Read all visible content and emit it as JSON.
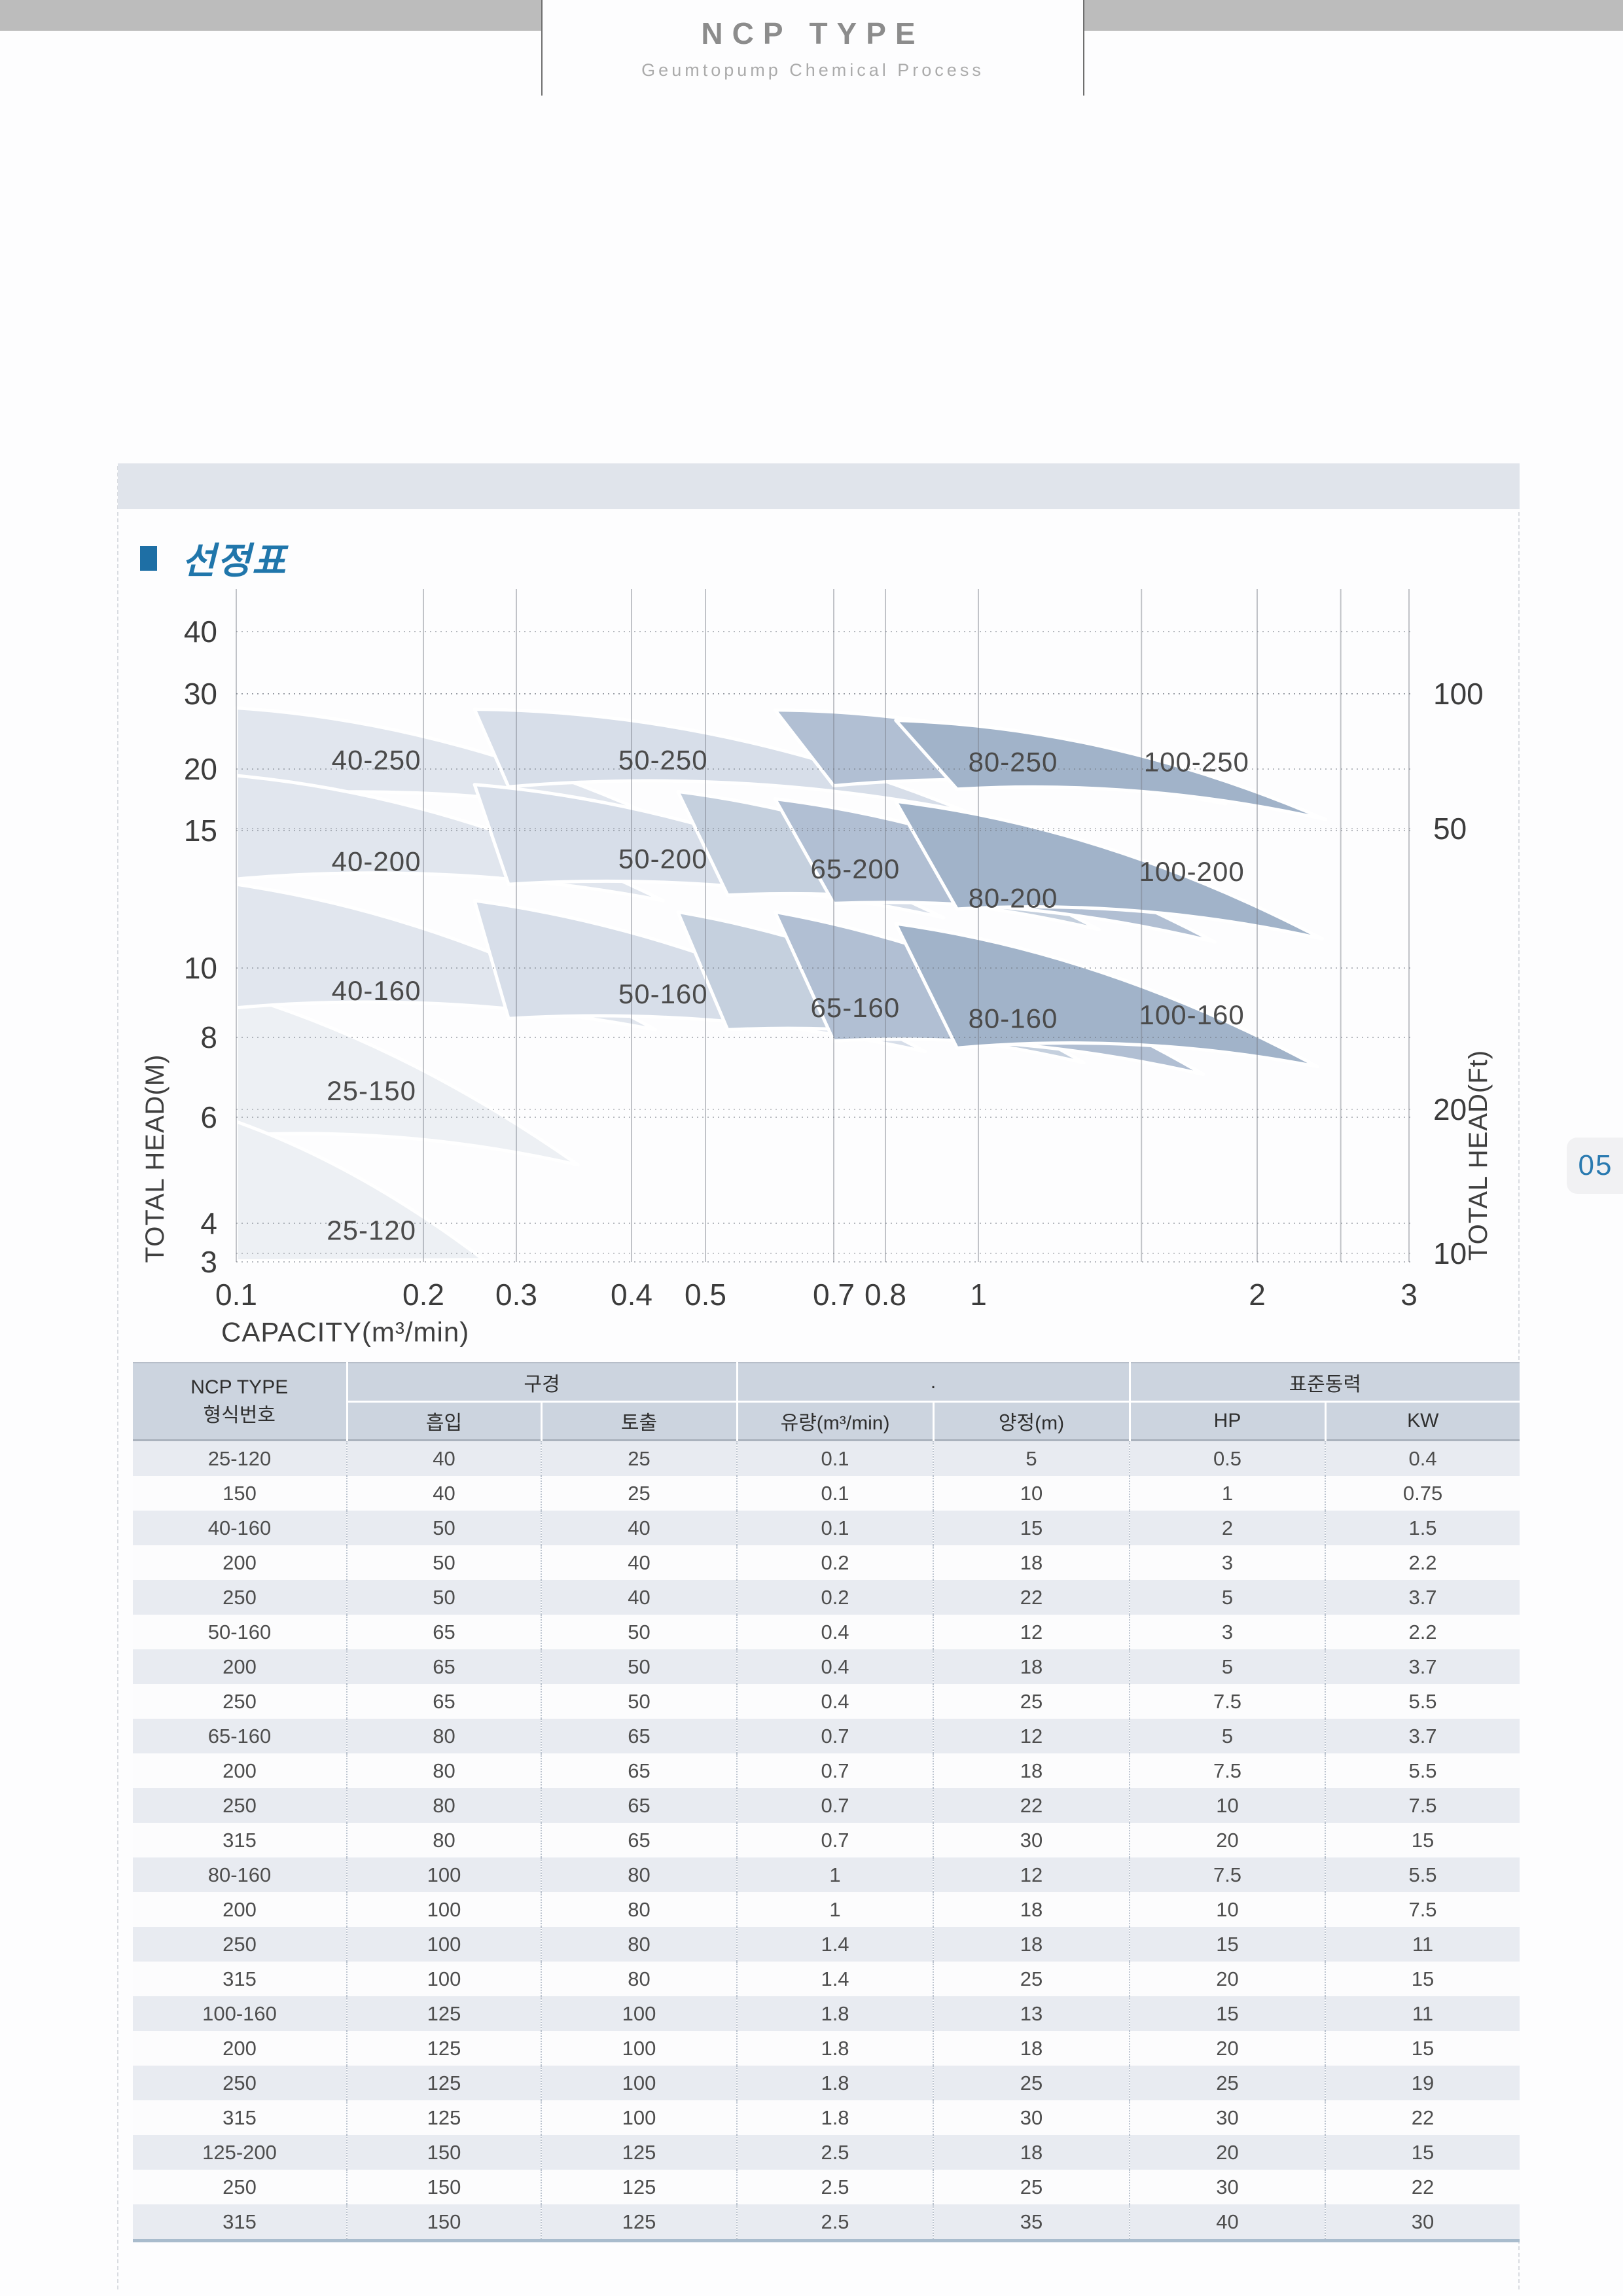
{
  "header": {
    "title": "NCP TYPE",
    "subtitle": "Geumtopump Chemical Process"
  },
  "section": {
    "title": "선정표"
  },
  "page_number": "05",
  "chart_data": {
    "type": "area",
    "title": "선정표 (pump selection chart)",
    "xlabel": "CAPACITY(m³/min)",
    "ylabel_left": "TOTAL HEAD(M)",
    "ylabel_right": "TOTAL HEAD(Ft)",
    "x_range": [
      0.1,
      3
    ],
    "y_range_m": [
      3,
      40
    ],
    "grid": "on",
    "x_ticks": [
      0.1,
      0.2,
      0.3,
      0.4,
      0.5,
      0.7,
      0.8,
      1,
      2,
      3
    ],
    "x_tick_labels": [
      "0.1",
      "0.2",
      "0.3",
      "0.4",
      "0.5",
      "0.7",
      "0.8",
      "1",
      "2",
      "3"
    ],
    "y_ticks_m": [
      40,
      30,
      20,
      15,
      10,
      8,
      6,
      4,
      3
    ],
    "y_tick_labels_m": [
      "40",
      "30",
      "20",
      "15",
      "10",
      "8",
      "6",
      "4",
      "3"
    ],
    "y_ticks_ft": [
      100,
      50,
      20,
      10
    ],
    "y_tick_labels_ft": [
      "100",
      "50",
      "20",
      "10"
    ],
    "regions": [
      {
        "label": "25-150",
        "color": "#edf0f4",
        "q1t": 0.1,
        "q1b": 0.1,
        "q2": 0.35,
        "hTL": 9.2,
        "hBL": 5.6,
        "hTip": 5.0,
        "label_q": 0.165,
        "label_h": 6.6,
        "flatBottom": false
      },
      {
        "label": "25-120",
        "color": "#edf0f4",
        "q1t": 0.1,
        "q1b": 0.1,
        "q2": 0.26,
        "hTL": 5.9,
        "hBL": 3.02,
        "hTip": 3.05,
        "label_q": 0.165,
        "label_h": 3.8,
        "flatBottom": true
      },
      {
        "label": "40-250",
        "color": "#e1e6ee",
        "q1t": 0.1,
        "q1b": 0.1,
        "q2": 0.45,
        "hTL": 27.8,
        "hBL": 17.6,
        "hTip": 15.5,
        "label_q": 0.168,
        "label_h": 21.0,
        "flatBottom": false
      },
      {
        "label": "40-200",
        "color": "#e1e6ee",
        "q1t": 0.1,
        "q1b": 0.1,
        "q2": 0.44,
        "hTL": 19.4,
        "hBL": 13.0,
        "hTip": 12.2,
        "label_q": 0.168,
        "label_h": 13.7,
        "flatBottom": false
      },
      {
        "label": "40-160",
        "color": "#e1e6ee",
        "q1t": 0.1,
        "q1b": 0.1,
        "q2": 0.43,
        "hTL": 12.8,
        "hBL": 8.8,
        "hTip": 8.2,
        "label_q": 0.168,
        "label_h": 9.3,
        "flatBottom": false
      },
      {
        "label": "50-250",
        "color": "#d7dee9",
        "q1t": 0.25,
        "q1b": 0.29,
        "q2": 0.97,
        "hTL": 27.6,
        "hBL": 18.4,
        "hTip": 16.4,
        "label_q": 0.44,
        "label_h": 21.0,
        "flatBottom": false
      },
      {
        "label": "50-200",
        "color": "#d7dee9",
        "q1t": 0.25,
        "q1b": 0.29,
        "q2": 0.92,
        "hTL": 18.6,
        "hBL": 12.8,
        "hTip": 11.6,
        "label_q": 0.44,
        "label_h": 13.8,
        "flatBottom": false
      },
      {
        "label": "50-160",
        "color": "#d7dee9",
        "q1t": 0.25,
        "q1b": 0.29,
        "q2": 0.88,
        "hTL": 12.2,
        "hBL": 8.5,
        "hTip": 7.6,
        "label_q": 0.44,
        "label_h": 9.2,
        "flatBottom": false
      },
      {
        "label": "65-200",
        "color": "#c5d0de",
        "q1t": 0.46,
        "q1b": 0.53,
        "q2": 1.35,
        "hTL": 18.0,
        "hBL": 12.4,
        "hTip": 11.2,
        "label_q": 0.74,
        "label_h": 13.4,
        "flatBottom": false
      },
      {
        "label": "65-160",
        "color": "#c5d0de",
        "q1t": 0.46,
        "q1b": 0.53,
        "q2": 1.3,
        "hTL": 11.8,
        "hBL": 8.2,
        "hTip": 7.3,
        "label_q": 0.74,
        "label_h": 8.8,
        "flatBottom": false
      },
      {
        "label": "80-250",
        "color": "#b1bfd3",
        "q1t": 0.6,
        "q1b": 0.7,
        "q2": 1.85,
        "hTL": 27.5,
        "hBL": 18.5,
        "hTip": 17.0,
        "label_q": 1.09,
        "label_h": 20.8,
        "flatBottom": false
      },
      {
        "label": "80-200",
        "color": "#b1bfd3",
        "q1t": 0.6,
        "q1b": 0.7,
        "q2": 1.8,
        "hTL": 17.4,
        "hBL": 12.1,
        "hTip": 10.8,
        "label_q": 1.09,
        "label_h": 12.3,
        "flatBottom": false
      },
      {
        "label": "80-160",
        "color": "#b1bfd3",
        "q1t": 0.6,
        "q1b": 0.7,
        "q2": 1.75,
        "hTL": 11.8,
        "hBL": 7.9,
        "hTip": 7.0,
        "label_q": 1.09,
        "label_h": 8.5,
        "flatBottom": false
      },
      {
        "label": "100-250",
        "color": "#a1b3c9",
        "q1t": 0.82,
        "q1b": 0.95,
        "q2": 2.4,
        "hTL": 26.0,
        "hBL": 18.2,
        "hTip": 15.8,
        "label_q": 1.72,
        "label_h": 20.8,
        "flatBottom": false
      },
      {
        "label": "100-200",
        "color": "#a1b3c9",
        "q1t": 0.82,
        "q1b": 0.95,
        "q2": 2.38,
        "hTL": 17.2,
        "hBL": 11.9,
        "hTip": 10.9,
        "label_q": 1.7,
        "label_h": 13.3,
        "flatBottom": false
      },
      {
        "label": "100-160",
        "color": "#a1b3c9",
        "q1t": 0.82,
        "q1b": 0.95,
        "q2": 2.35,
        "hTL": 11.4,
        "hBL": 7.7,
        "hTip": 7.2,
        "label_q": 1.7,
        "label_h": 8.6,
        "flatBottom": false
      }
    ]
  },
  "table": {
    "col1_header": [
      "NCP TYPE",
      "형식번호"
    ],
    "groups": [
      {
        "label": "구경",
        "cols": [
          "흡입",
          "토출"
        ]
      },
      {
        "label": ".",
        "cols": [
          "유량(m³/min)",
          "양정(m)"
        ]
      },
      {
        "label": "표준동력",
        "cols": [
          "HP",
          "KW"
        ]
      }
    ],
    "rows": [
      [
        "25-120",
        "40",
        "25",
        "0.1",
        "5",
        "0.5",
        "0.4"
      ],
      [
        "150",
        "40",
        "25",
        "0.1",
        "10",
        "1",
        "0.75"
      ],
      [
        "40-160",
        "50",
        "40",
        "0.1",
        "15",
        "2",
        "1.5"
      ],
      [
        "200",
        "50",
        "40",
        "0.2",
        "18",
        "3",
        "2.2"
      ],
      [
        "250",
        "50",
        "40",
        "0.2",
        "22",
        "5",
        "3.7"
      ],
      [
        "50-160",
        "65",
        "50",
        "0.4",
        "12",
        "3",
        "2.2"
      ],
      [
        "200",
        "65",
        "50",
        "0.4",
        "18",
        "5",
        "3.7"
      ],
      [
        "250",
        "65",
        "50",
        "0.4",
        "25",
        "7.5",
        "5.5"
      ],
      [
        "65-160",
        "80",
        "65",
        "0.7",
        "12",
        "5",
        "3.7"
      ],
      [
        "200",
        "80",
        "65",
        "0.7",
        "18",
        "7.5",
        "5.5"
      ],
      [
        "250",
        "80",
        "65",
        "0.7",
        "22",
        "10",
        "7.5"
      ],
      [
        "315",
        "80",
        "65",
        "0.7",
        "30",
        "20",
        "15"
      ],
      [
        "80-160",
        "100",
        "80",
        "1",
        "12",
        "7.5",
        "5.5"
      ],
      [
        "200",
        "100",
        "80",
        "1",
        "18",
        "10",
        "7.5"
      ],
      [
        "250",
        "100",
        "80",
        "1.4",
        "18",
        "15",
        "11"
      ],
      [
        "315",
        "100",
        "80",
        "1.4",
        "25",
        "20",
        "15"
      ],
      [
        "100-160",
        "125",
        "100",
        "1.8",
        "13",
        "15",
        "11"
      ],
      [
        "200",
        "125",
        "100",
        "1.8",
        "18",
        "20",
        "15"
      ],
      [
        "250",
        "125",
        "100",
        "1.8",
        "25",
        "25",
        "19"
      ],
      [
        "315",
        "125",
        "100",
        "1.8",
        "30",
        "30",
        "22"
      ],
      [
        "125-200",
        "150",
        "125",
        "2.5",
        "18",
        "20",
        "15"
      ],
      [
        "250",
        "150",
        "125",
        "2.5",
        "25",
        "30",
        "22"
      ],
      [
        "315",
        "150",
        "125",
        "2.5",
        "35",
        "40",
        "30"
      ]
    ]
  }
}
